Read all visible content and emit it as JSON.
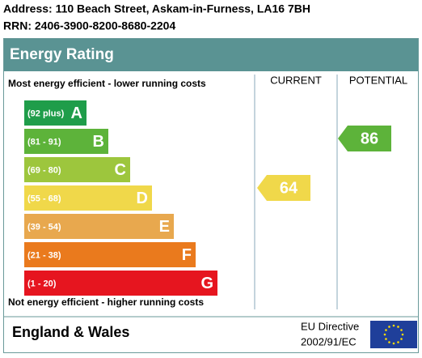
{
  "header": {
    "address": "Address: 110 Beach Street, Askam-in-Furness, LA16 7BH",
    "rrn": "RRN: 2406-3900-8200-8680-2204"
  },
  "title": "Energy Rating",
  "columns": {
    "current": "CURRENT",
    "potential": "POTENTIAL"
  },
  "top_label": "Most energy efficient - lower running costs",
  "bottom_label": "Not energy efficient - higher running costs",
  "bands": [
    {
      "range": "(92 plus)",
      "letter": "A",
      "color": "#1f9d4a"
    },
    {
      "range": "(81 - 91)",
      "letter": "B",
      "color": "#5db33a"
    },
    {
      "range": "(69 - 80)",
      "letter": "C",
      "color": "#9dc63d"
    },
    {
      "range": "(55 - 68)",
      "letter": "D",
      "color": "#f0d84a"
    },
    {
      "range": "(39 - 54)",
      "letter": "E",
      "color": "#e8a84e"
    },
    {
      "range": "(21 - 38)",
      "letter": "F",
      "color": "#ea7a1d"
    },
    {
      "range": "(1 - 20)",
      "letter": "G",
      "color": "#e6151f"
    }
  ],
  "current": {
    "value": 64,
    "color": "#f0d84a"
  },
  "potential": {
    "value": 86,
    "color": "#5db33a"
  },
  "footer": {
    "region": "England & Wales",
    "directive": [
      "EU Directive",
      "2002/91/EC"
    ]
  }
}
